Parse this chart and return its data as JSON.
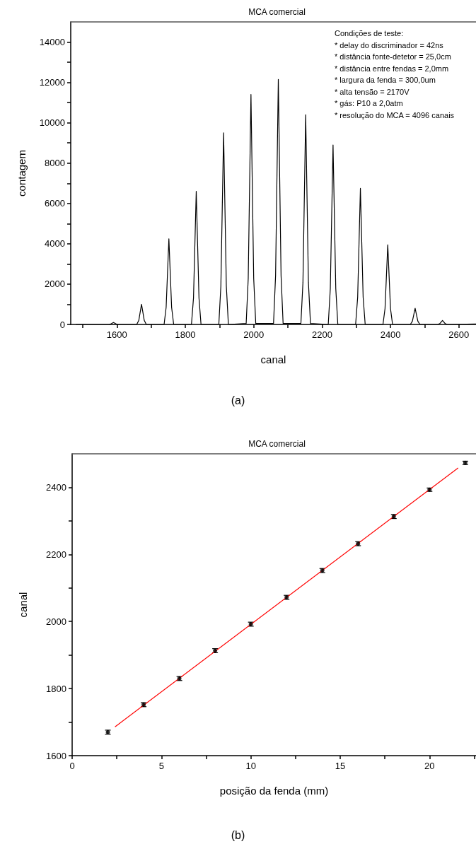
{
  "chart_data": [
    {
      "type": "line",
      "title": "MCA comercial",
      "xlabel": "canal",
      "ylabel": "contagem",
      "annotations": [
        "(a)",
        "Condições de teste:",
        "* delay do discriminador = 42ns",
        "* distância fonte-detetor = 25,0cm",
        "* distância entre fendas = 2,0mm",
        "* largura da fenda = 300,0um",
        "* alta tensão = 2170V",
        "* gás: P10 a 2,0atm",
        "* resolução do MCA = 4096 canais"
      ],
      "xlim": [
        1465,
        2650
      ],
      "ylim": [
        0,
        15000
      ],
      "xticks": [
        {
          "value": 1500,
          "label": null
        },
        1600,
        {
          "value": 1700,
          "label": null
        },
        1800,
        {
          "value": 1900,
          "label": null
        },
        2000,
        {
          "value": 2100,
          "label": null
        },
        2200,
        {
          "value": 2300,
          "label": null
        },
        2400,
        {
          "value": 2500,
          "label": null
        },
        2600
      ],
      "yticks": [
        0,
        {
          "value": 1000,
          "label": null
        },
        2000,
        {
          "value": 3000,
          "label": null
        },
        4000,
        {
          "value": 5000,
          "label": null
        },
        6000,
        {
          "value": 7000,
          "label": null
        },
        8000,
        {
          "value": 9000,
          "label": null
        },
        10000,
        {
          "value": 11000,
          "label": null
        },
        12000,
        {
          "value": 13000,
          "label": null
        },
        14000
      ],
      "grid": false,
      "line_style": "solid",
      "series": [
        {
          "color": "#000000",
          "marker": "none",
          "x": [
            1480,
            1576,
            1582,
            1586,
            1590,
            1594,
            1598,
            1604,
            1658,
            1664,
            1668,
            1672,
            1676,
            1680,
            1686,
            1738,
            1744,
            1748,
            1752,
            1756,
            1760,
            1766,
            1818,
            1824,
            1828,
            1832,
            1836,
            1840,
            1846,
            1898,
            1904,
            1908,
            1912,
            1916,
            1920,
            1926,
            1978,
            1984,
            1988,
            1992,
            1996,
            2000,
            2006,
            2058,
            2064,
            2068,
            2072,
            2076,
            2080,
            2086,
            2138,
            2144,
            2148,
            2152,
            2156,
            2160,
            2166,
            2218,
            2224,
            2228,
            2232,
            2236,
            2240,
            2246,
            2298,
            2304,
            2308,
            2312,
            2316,
            2320,
            2326,
            2378,
            2384,
            2388,
            2392,
            2396,
            2400,
            2406,
            2458,
            2464,
            2468,
            2472,
            2476,
            2480,
            2486,
            2538,
            2544,
            2548,
            2552,
            2556,
            2560,
            2566,
            2650
          ],
          "values": [
            0,
            0,
            20,
            60,
            100,
            60,
            20,
            0,
            0,
            200,
            600,
            1000,
            600,
            200,
            0,
            0,
            850,
            2550,
            4250,
            2550,
            850,
            0,
            0,
            1320,
            3960,
            6600,
            3960,
            1320,
            0,
            0,
            1900,
            5700,
            9500,
            5700,
            1900,
            0,
            50,
            2280,
            6840,
            11400,
            6840,
            2280,
            50,
            50,
            2430,
            7290,
            12150,
            7290,
            2430,
            50,
            50,
            2080,
            6240,
            10400,
            6240,
            2080,
            50,
            0,
            1780,
            5340,
            8900,
            5340,
            1780,
            0,
            0,
            1350,
            4050,
            6750,
            4050,
            1350,
            0,
            0,
            790,
            2370,
            3950,
            2370,
            790,
            0,
            0,
            160,
            480,
            800,
            480,
            160,
            0,
            0,
            40,
            120,
            200,
            120,
            40,
            0,
            20
          ]
        }
      ]
    },
    {
      "type": "scatter",
      "title": "MCA comercial",
      "xlabel": "posição da fenda (mm)",
      "ylabel": "canal",
      "annotations": [
        "(b)"
      ],
      "xlim": [
        0,
        22.6
      ],
      "ylim": [
        1600,
        2500
      ],
      "xticks": [
        0,
        {
          "value": 2.5,
          "label": null
        },
        5,
        {
          "value": 7.5,
          "label": null
        },
        10,
        {
          "value": 12.5,
          "label": null
        },
        15,
        {
          "value": 17.5,
          "label": null
        },
        20,
        {
          "value": 22.5,
          "label": null
        }
      ],
      "yticks": [
        1600,
        {
          "value": 1700,
          "label": null
        },
        1800,
        {
          "value": 1900,
          "label": null
        },
        2000,
        {
          "value": 2100,
          "label": null
        },
        2200,
        {
          "value": 2300,
          "label": null
        },
        2400
      ],
      "grid": false,
      "series": [
        {
          "color": "#000000",
          "marker": "circle",
          "x": [
            2,
            4,
            6,
            8,
            10,
            12,
            14,
            16,
            18,
            20,
            22
          ],
          "values": [
            1670,
            1752,
            1830,
            1913,
            1992,
            2072,
            2152,
            2232,
            2313,
            2393,
            2473
          ],
          "errors": [
            6,
            6,
            6,
            6,
            6,
            6,
            6,
            6,
            6,
            5,
            5
          ]
        },
        {
          "type": "line",
          "color": "#ff0000",
          "marker": "none",
          "x": [
            2.4,
            21.6
          ],
          "values": [
            1686,
            2458
          ]
        }
      ]
    }
  ]
}
